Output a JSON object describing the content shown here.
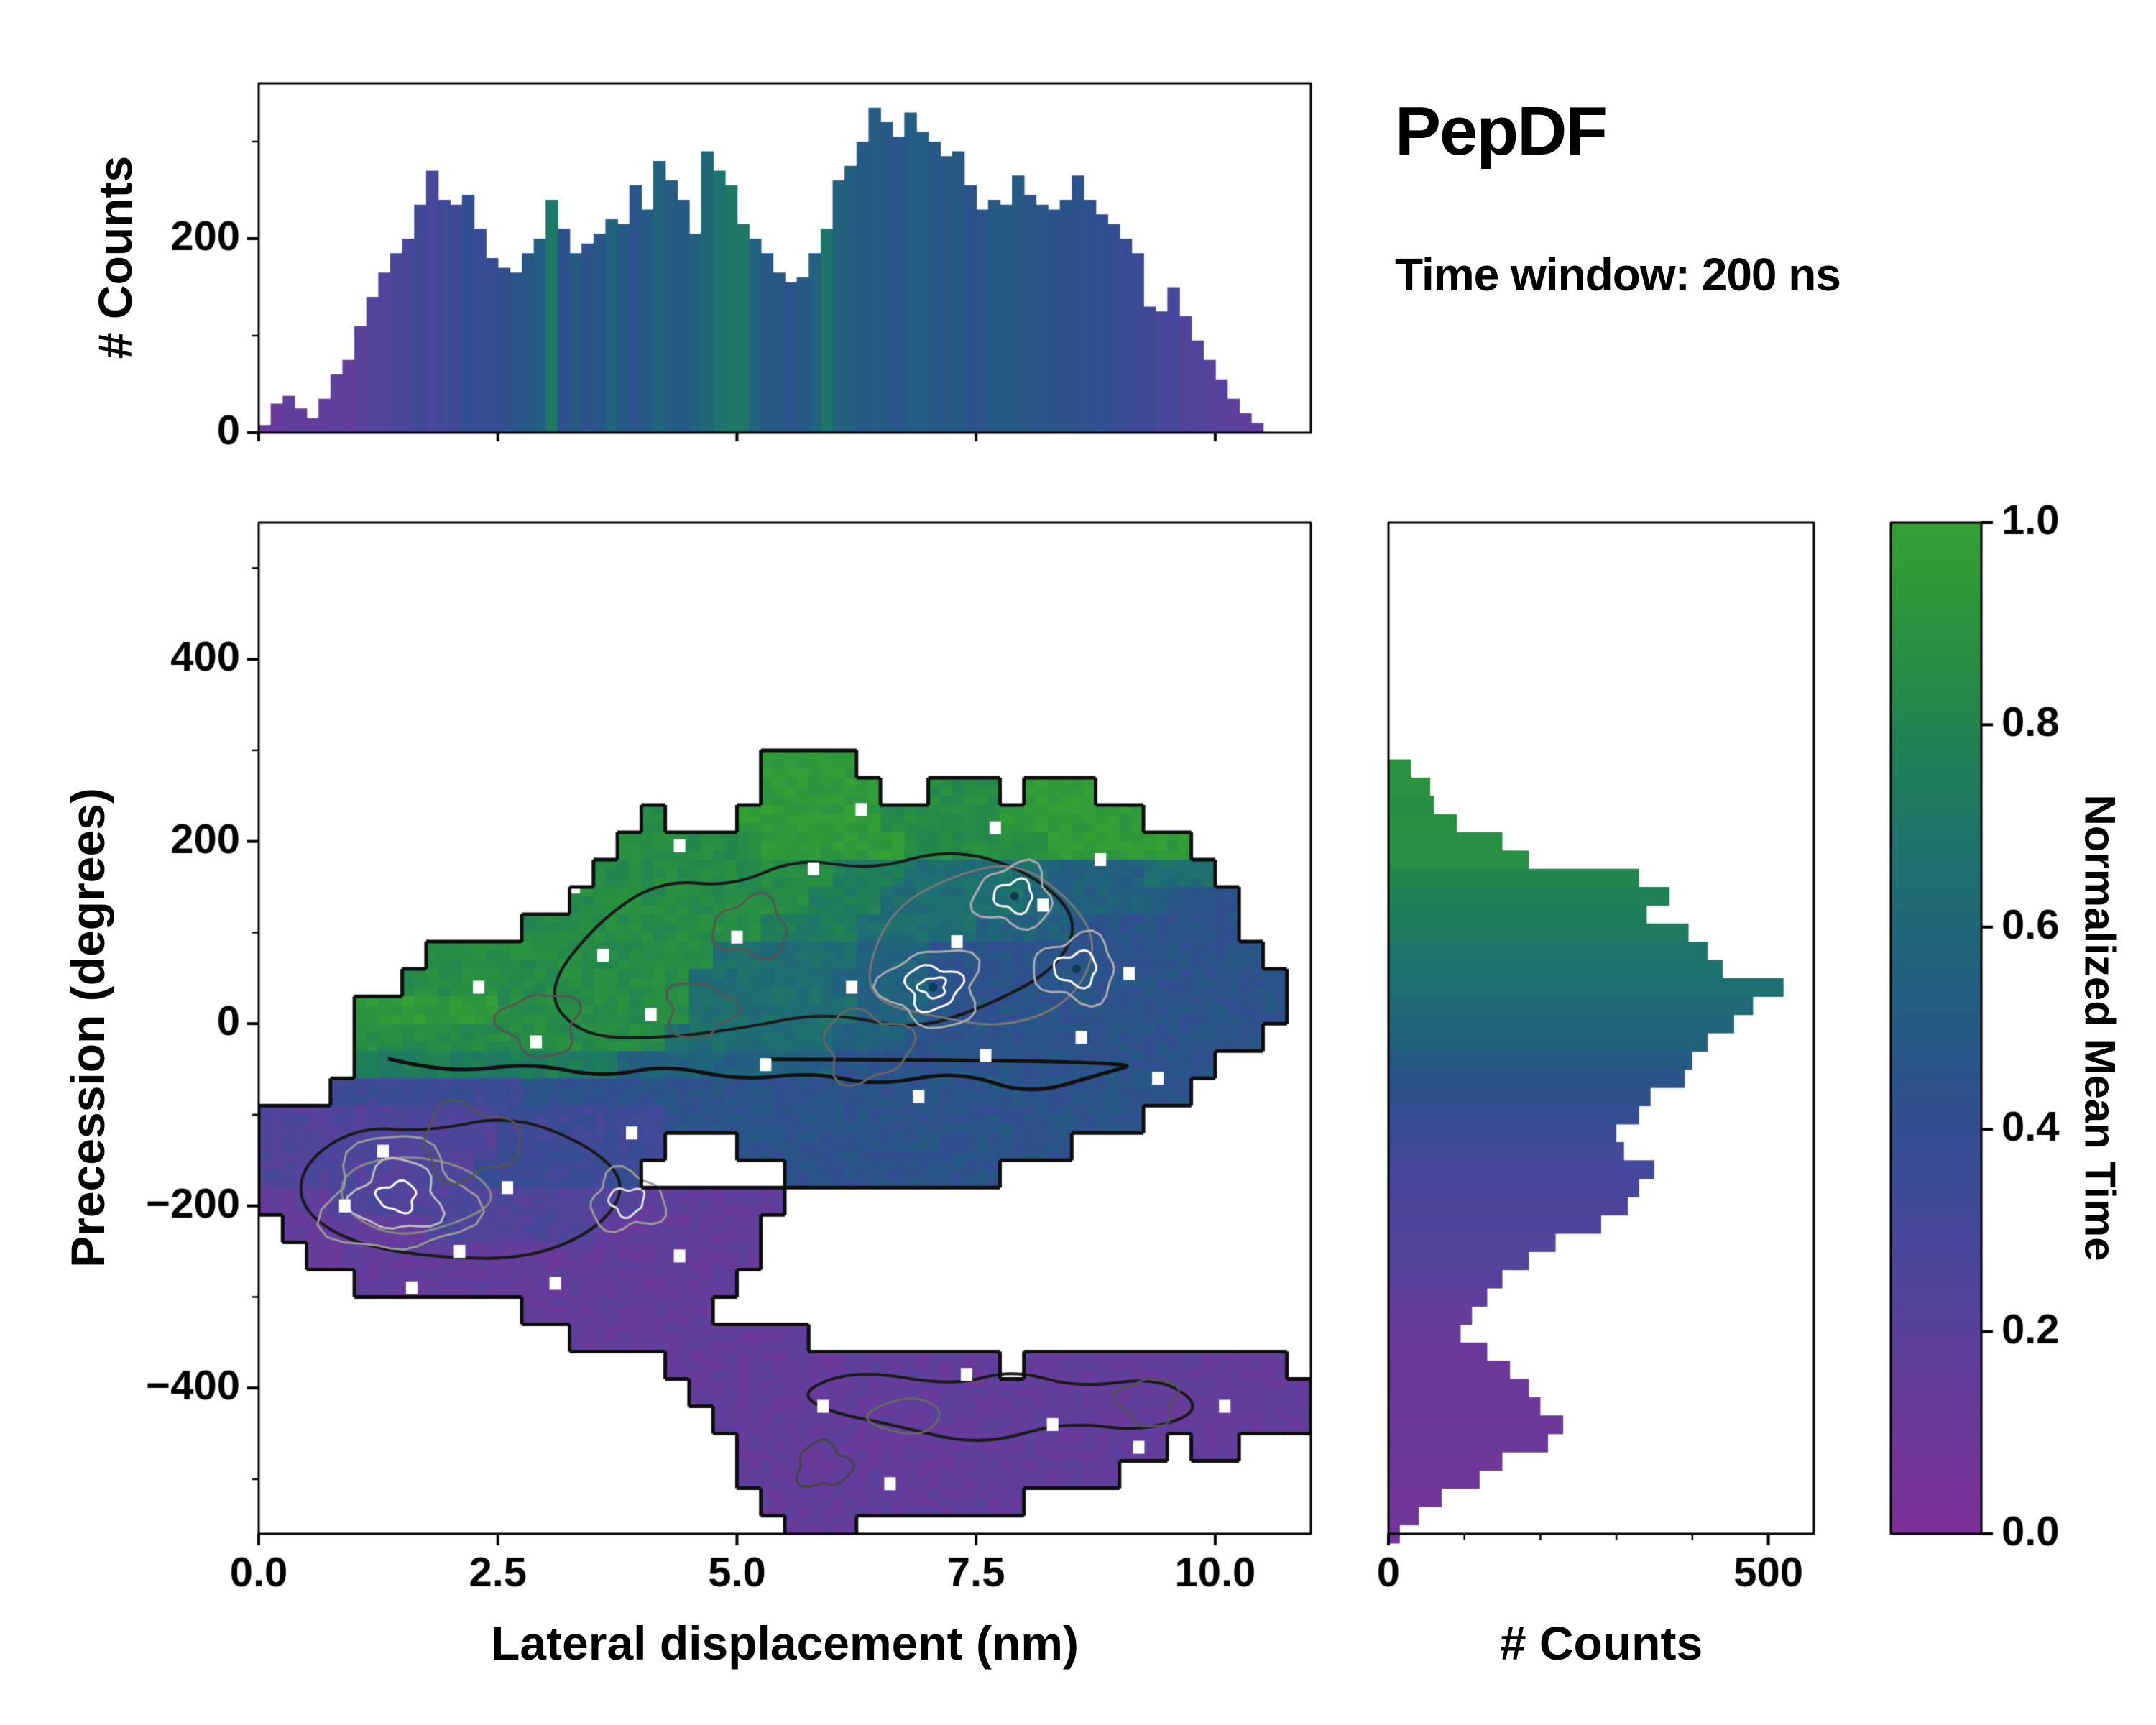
{
  "title": "PepDF",
  "subtitle": "Time window: 200 ns",
  "colors": {
    "background": "#ffffff",
    "axis": "#000000",
    "colormap_stops": [
      [
        0.0,
        "#7d3196"
      ],
      [
        0.15,
        "#633d9c"
      ],
      [
        0.3,
        "#46489b"
      ],
      [
        0.42,
        "#2f4f8e"
      ],
      [
        0.5,
        "#265a84"
      ],
      [
        0.58,
        "#20657b"
      ],
      [
        0.66,
        "#1e7070"
      ],
      [
        0.75,
        "#1f7d5c"
      ],
      [
        0.85,
        "#268c45"
      ],
      [
        1.0,
        "#35a134"
      ]
    ]
  },
  "chart_data": [
    {
      "id": "top_histogram",
      "type": "bar",
      "ylabel": "# Counts",
      "ylim": [
        0,
        360
      ],
      "ytick_values": [
        0,
        200
      ],
      "ytick_labels": [
        "0",
        "200"
      ],
      "x_start": 0.0,
      "dx": 0.125,
      "values": [
        8,
        30,
        38,
        25,
        15,
        35,
        60,
        75,
        110,
        140,
        165,
        185,
        200,
        235,
        270,
        240,
        235,
        245,
        210,
        180,
        170,
        165,
        185,
        200,
        240,
        210,
        185,
        195,
        205,
        220,
        215,
        255,
        230,
        280,
        260,
        240,
        205,
        290,
        270,
        255,
        215,
        200,
        185,
        165,
        155,
        160,
        185,
        210,
        260,
        275,
        300,
        335,
        320,
        305,
        330,
        310,
        300,
        285,
        290,
        255,
        230,
        240,
        235,
        265,
        245,
        235,
        230,
        240,
        265,
        240,
        225,
        215,
        200,
        185,
        130,
        125,
        150,
        120,
        95,
        75,
        55,
        35,
        20,
        10
      ],
      "color_values": [
        0.15,
        0.14,
        0.16,
        0.15,
        0.17,
        0.16,
        0.18,
        0.17,
        0.2,
        0.22,
        0.25,
        0.3,
        0.28,
        0.32,
        0.3,
        0.33,
        0.35,
        0.4,
        0.38,
        0.36,
        0.42,
        0.45,
        0.5,
        0.55,
        0.72,
        0.45,
        0.5,
        0.42,
        0.48,
        0.55,
        0.5,
        0.45,
        0.5,
        0.55,
        0.5,
        0.48,
        0.52,
        0.62,
        0.68,
        0.72,
        0.7,
        0.58,
        0.5,
        0.48,
        0.45,
        0.5,
        0.55,
        0.66,
        0.55,
        0.52,
        0.5,
        0.52,
        0.5,
        0.48,
        0.5,
        0.52,
        0.5,
        0.48,
        0.5,
        0.47,
        0.45,
        0.48,
        0.5,
        0.48,
        0.45,
        0.44,
        0.46,
        0.45,
        0.43,
        0.42,
        0.4,
        0.38,
        0.36,
        0.34,
        0.32,
        0.3,
        0.28,
        0.27,
        0.25,
        0.22,
        0.2,
        0.18,
        0.16,
        0.15
      ]
    },
    {
      "id": "main_heatmap",
      "type": "heatmap",
      "xlabel": "Lateral displacement (nm)",
      "ylabel": "Precession (degrees)",
      "xlim": [
        0,
        11
      ],
      "ylim": [
        -560,
        550
      ],
      "xtick_values": [
        0,
        2.5,
        5,
        7.5,
        10
      ],
      "xtick_labels": [
        "0.0",
        "2.5",
        "5.0",
        "7.5",
        "10.0"
      ],
      "ytick_values": [
        -400,
        -200,
        0,
        200,
        400
      ],
      "ytick_labels": [
        "−400",
        "−200",
        "0",
        "200",
        "400"
      ],
      "value_encoding": "digit d means normalized mean time (d+0.5)/10, '.' means empty cell; rows run-length encoded as count:char",
      "grid": {
        "x0": 0.0,
        "dx": 0.25,
        "y0": 300,
        "dy": -30,
        "ncols": 44,
        "rows": [
          "21:.,4:9,19:.",
          "21:.,5:9,2:.,3:8,1:.,3:9,9:.",
          "16:.,1:8,3:.,6:9,5:8,6:9,7:.",
          "15:.,6:8,6:9,6:8,6:9,5:.",
          "14:.,10:8,3:7,6:6,4:5,3:6,4:.",
          "13:.,10:8,3:7,6:6,6:5,3:4,3:.",
          "11:.,10:8,4:7,5:6,4:5,7:4,3:.",
          "7:.,12:8,6:6,3:5,14:4,2:.",
          "6:.,12:8,6:6,4:5,15:4,1:.",
          "4:.,6:9,8:8,7:6,3:5,15:4,1:.",
          "4:.,13:8,7:6,3:5,15:4,2:.",
          "4:.,11:7,9:5,16:4,4:.",
          "3:.,8:3,28:4,5:.",
          "10:2,7:3,20:4,7:.",
          "10:2,7:3,3:.,14:4,10:.",
          "9:2,7:3,6:.,9:4,13:.",
          "3:1,13:2,6:1,22:.",
          "1:.,6:1,7:2,7:1,23:.",
          "2:.,19:1,23:.",
          "4:.,16:1,24:.",
          "11:.,8:1,25:.",
          "13:.,10:1,21:.",
          "17:.,14:1,1:.,11:1,1:.",
          "18:.,26:1",
          "19:.,25:1",
          "20:.,18:1,1:.,2:1,3:.",
          "20:.,16:1,8:.",
          "21:.,11:1,12:.",
          "22:.,3:1,19:."
        ]
      },
      "white_pixels": [
        [
          1.9,
          120
        ],
        [
          2.3,
          40
        ],
        [
          2.9,
          -20
        ],
        [
          3.3,
          150
        ],
        [
          3.6,
          75
        ],
        [
          4.1,
          10
        ],
        [
          4.4,
          195
        ],
        [
          5.0,
          95
        ],
        [
          5.3,
          -45
        ],
        [
          5.8,
          170
        ],
        [
          6.2,
          40
        ],
        [
          6.3,
          235
        ],
        [
          6.9,
          -80
        ],
        [
          7.3,
          90
        ],
        [
          7.6,
          -35
        ],
        [
          7.7,
          215
        ],
        [
          8.2,
          130
        ],
        [
          8.6,
          -15
        ],
        [
          8.8,
          180
        ],
        [
          9.1,
          55
        ],
        [
          9.4,
          -60
        ],
        [
          1.3,
          -140
        ],
        [
          2.1,
          -250
        ],
        [
          2.6,
          -180
        ],
        [
          3.1,
          -285
        ],
        [
          3.9,
          -120
        ],
        [
          4.4,
          -255
        ],
        [
          5.9,
          -420
        ],
        [
          6.6,
          -505
        ],
        [
          7.4,
          -385
        ],
        [
          8.3,
          -440
        ],
        [
          9.2,
          -465
        ],
        [
          10.1,
          -420
        ],
        [
          0.9,
          -200
        ],
        [
          1.6,
          -290
        ]
      ],
      "contour_paths": [
        {
          "color": "#111111",
          "width": 5,
          "closed": false,
          "points": [
            [
              1.3,
              -35
            ],
            [
              2.0,
              -55
            ],
            [
              2.8,
              -40
            ],
            [
              3.6,
              -60
            ],
            [
              4.3,
              -45
            ],
            [
              5.0,
              -65
            ],
            [
              5.8,
              -50
            ],
            [
              6.5,
              -70
            ],
            [
              7.3,
              -55
            ],
            [
              8.0,
              -75
            ],
            [
              8.8,
              -60
            ],
            [
              9.3,
              -45
            ]
          ]
        },
        {
          "color": "#1a1a1a",
          "width": 4,
          "closed": true,
          "points": [
            [
              3.0,
              40
            ],
            [
              3.5,
              110
            ],
            [
              4.2,
              160
            ],
            [
              5.0,
              150
            ],
            [
              5.6,
              185
            ],
            [
              6.4,
              170
            ],
            [
              7.2,
              195
            ],
            [
              8.0,
              170
            ],
            [
              8.6,
              120
            ],
            [
              8.3,
              60
            ],
            [
              7.6,
              20
            ],
            [
              6.8,
              -10
            ],
            [
              5.9,
              10
            ],
            [
              5.0,
              -5
            ],
            [
              4.2,
              -20
            ],
            [
              3.4,
              -10
            ]
          ]
        },
        {
          "color": "#777777",
          "width": 3,
          "closed": true,
          "points": [
            [
              6.3,
              60
            ],
            [
              6.6,
              120
            ],
            [
              7.2,
              160
            ],
            [
              7.9,
              175
            ],
            [
              8.5,
              140
            ],
            [
              8.8,
              80
            ],
            [
              8.5,
              20
            ],
            [
              7.8,
              -5
            ],
            [
              7.0,
              5
            ],
            [
              6.5,
              25
            ]
          ]
        },
        {
          "color": "#1a1a1a",
          "width": 4,
          "closed": true,
          "points": [
            [
              0.5,
              -150
            ],
            [
              1.0,
              -110
            ],
            [
              1.8,
              -120
            ],
            [
              2.6,
              -105
            ],
            [
              3.4,
              -130
            ],
            [
              3.9,
              -170
            ],
            [
              3.6,
              -220
            ],
            [
              2.8,
              -255
            ],
            [
              1.9,
              -260
            ],
            [
              1.0,
              -240
            ],
            [
              0.4,
              -200
            ]
          ]
        },
        {
          "color": "#888888",
          "width": 3,
          "closed": true,
          "points": [
            [
              0.9,
              -160
            ],
            [
              1.5,
              -140
            ],
            [
              2.2,
              -155
            ],
            [
              2.5,
              -190
            ],
            [
              2.1,
              -225
            ],
            [
              1.4,
              -230
            ],
            [
              0.9,
              -205
            ]
          ]
        },
        {
          "color": "#1a1a1a",
          "width": 4,
          "closed": true,
          "points": [
            [
              5.6,
              -400
            ],
            [
              6.3,
              -380
            ],
            [
              7.2,
              -395
            ],
            [
              7.9,
              -380
            ],
            [
              8.6,
              -400
            ],
            [
              9.4,
              -390
            ],
            [
              9.9,
              -420
            ],
            [
              9.3,
              -450
            ],
            [
              8.4,
              -440
            ],
            [
              7.5,
              -460
            ],
            [
              6.6,
              -445
            ],
            [
              5.9,
              -430
            ]
          ]
        },
        {
          "color": "#666666",
          "width": 3,
          "closed": true,
          "points": [
            [
              6.3,
              -420
            ],
            [
              6.8,
              -410
            ],
            [
              7.2,
              -430
            ],
            [
              6.9,
              -455
            ],
            [
              6.4,
              -445
            ]
          ]
        }
      ],
      "rings": [
        {
          "cx": 7.05,
          "cy": 40,
          "rx": 0.5,
          "ry": 42,
          "color": "#aaaaaa",
          "width": 3
        },
        {
          "cx": 7.05,
          "cy": 40,
          "rx": 0.28,
          "ry": 24,
          "color": "#ffffff",
          "width": 3
        },
        {
          "cx": 7.05,
          "cy": 40,
          "rx": 0.14,
          "ry": 11,
          "color": "#ffffff",
          "width": 3
        },
        {
          "cx": 7.9,
          "cy": 140,
          "rx": 0.4,
          "ry": 34,
          "color": "#aaaaaa",
          "width": 3
        },
        {
          "cx": 7.9,
          "cy": 140,
          "rx": 0.2,
          "ry": 17,
          "color": "#ffffff",
          "width": 3
        },
        {
          "cx": 8.55,
          "cy": 60,
          "rx": 0.42,
          "ry": 36,
          "color": "#aaaaaa",
          "width": 3
        },
        {
          "cx": 8.55,
          "cy": 60,
          "rx": 0.22,
          "ry": 18,
          "color": "#ffffff",
          "width": 3
        },
        {
          "cx": 1.45,
          "cy": -190,
          "rx": 0.75,
          "ry": 62,
          "color": "#999999",
          "width": 3
        },
        {
          "cx": 1.45,
          "cy": -190,
          "rx": 0.45,
          "ry": 38,
          "color": "#bbbbbb",
          "width": 3
        },
        {
          "cx": 1.45,
          "cy": -190,
          "rx": 0.2,
          "ry": 16,
          "color": "#ffffff",
          "width": 3
        },
        {
          "cx": 3.85,
          "cy": -195,
          "rx": 0.38,
          "ry": 32,
          "color": "#999999",
          "width": 3
        },
        {
          "cx": 3.85,
          "cy": -195,
          "rx": 0.18,
          "ry": 15,
          "color": "#dddddd",
          "width": 3
        },
        {
          "cx": 4.6,
          "cy": 15,
          "rx": 0.35,
          "ry": 30,
          "color": "#555555",
          "width": 3
        },
        {
          "cx": 2.95,
          "cy": 0,
          "rx": 0.4,
          "ry": 34,
          "color": "#555555",
          "width": 3
        },
        {
          "cx": 5.15,
          "cy": 105,
          "rx": 0.38,
          "ry": 32,
          "color": "#555555",
          "width": 3
        },
        {
          "cx": 6.35,
          "cy": -25,
          "rx": 0.45,
          "ry": 38,
          "color": "#666666",
          "width": 3
        },
        {
          "cx": 2.2,
          "cy": -130,
          "rx": 0.5,
          "ry": 40,
          "color": "#555555",
          "width": 3
        },
        {
          "cx": 9.3,
          "cy": -415,
          "rx": 0.3,
          "ry": 26,
          "color": "#555555",
          "width": 3
        },
        {
          "cx": 5.9,
          "cy": -485,
          "rx": 0.28,
          "ry": 24,
          "color": "#444444",
          "width": 3
        }
      ],
      "dots": [
        [
          7.05,
          40
        ],
        [
          7.9,
          140
        ],
        [
          8.55,
          60
        ]
      ]
    },
    {
      "id": "right_histogram",
      "type": "bar",
      "xlabel": "# Counts",
      "xlim": [
        0,
        560
      ],
      "xtick_values": [
        0,
        500
      ],
      "xtick_labels": [
        "0",
        "500"
      ],
      "y_start": 290,
      "dy": -20,
      "values": [
        30,
        55,
        60,
        90,
        150,
        185,
        330,
        370,
        340,
        395,
        420,
        440,
        520,
        480,
        455,
        420,
        400,
        390,
        345,
        330,
        300,
        310,
        350,
        330,
        315,
        280,
        220,
        185,
        150,
        130,
        110,
        95,
        130,
        160,
        185,
        200,
        230,
        210,
        150,
        120,
        70,
        40,
        15
      ],
      "color_values": [
        0.9,
        0.9,
        0.88,
        0.88,
        0.87,
        0.86,
        0.8,
        0.78,
        0.75,
        0.72,
        0.7,
        0.68,
        0.65,
        0.62,
        0.6,
        0.55,
        0.5,
        0.45,
        0.42,
        0.4,
        0.36,
        0.33,
        0.3,
        0.28,
        0.27,
        0.26,
        0.24,
        0.22,
        0.2,
        0.17,
        0.15,
        0.13,
        0.12,
        0.11,
        0.1,
        0.1,
        0.09,
        0.09,
        0.08,
        0.08,
        0.07,
        0.06,
        0.05
      ]
    },
    {
      "id": "colorbar",
      "type": "colorbar",
      "label": "Normalized Mean Time",
      "lim": [
        0,
        1
      ],
      "tick_values": [
        0.0,
        0.2,
        0.4,
        0.6,
        0.8,
        1.0
      ],
      "tick_labels": [
        "0.0",
        "0.2",
        "0.4",
        "0.6",
        "0.8",
        "1.0"
      ]
    }
  ]
}
